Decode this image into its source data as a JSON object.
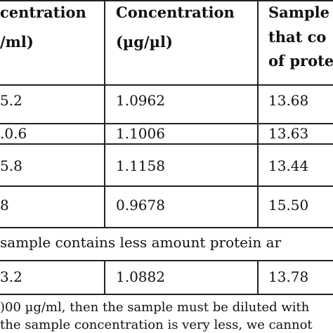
{
  "table": {
    "headers": {
      "col1": [
        "centration",
        "/ml)"
      ],
      "col2": [
        "Concentration",
        "(µg/µl)"
      ],
      "col3": [
        "Sample",
        "that co",
        "of prote"
      ]
    },
    "rows": [
      [
        "5.2",
        "1.0962",
        "13.68"
      ],
      [
        ".0.6",
        "1.1006",
        "13.63"
      ],
      [
        "5.8",
        "1.1158",
        "13.44"
      ],
      [
        "8",
        "0.9678",
        "15.50"
      ]
    ],
    "span_note": "sample contains less amount protein ar",
    "last_row": [
      "3.2",
      "1.0882",
      "13.78"
    ]
  },
  "footnotes": [
    ")00 µg/ml, then the sample must be diluted with",
    "the sample concentration is very less, we cannot"
  ]
}
